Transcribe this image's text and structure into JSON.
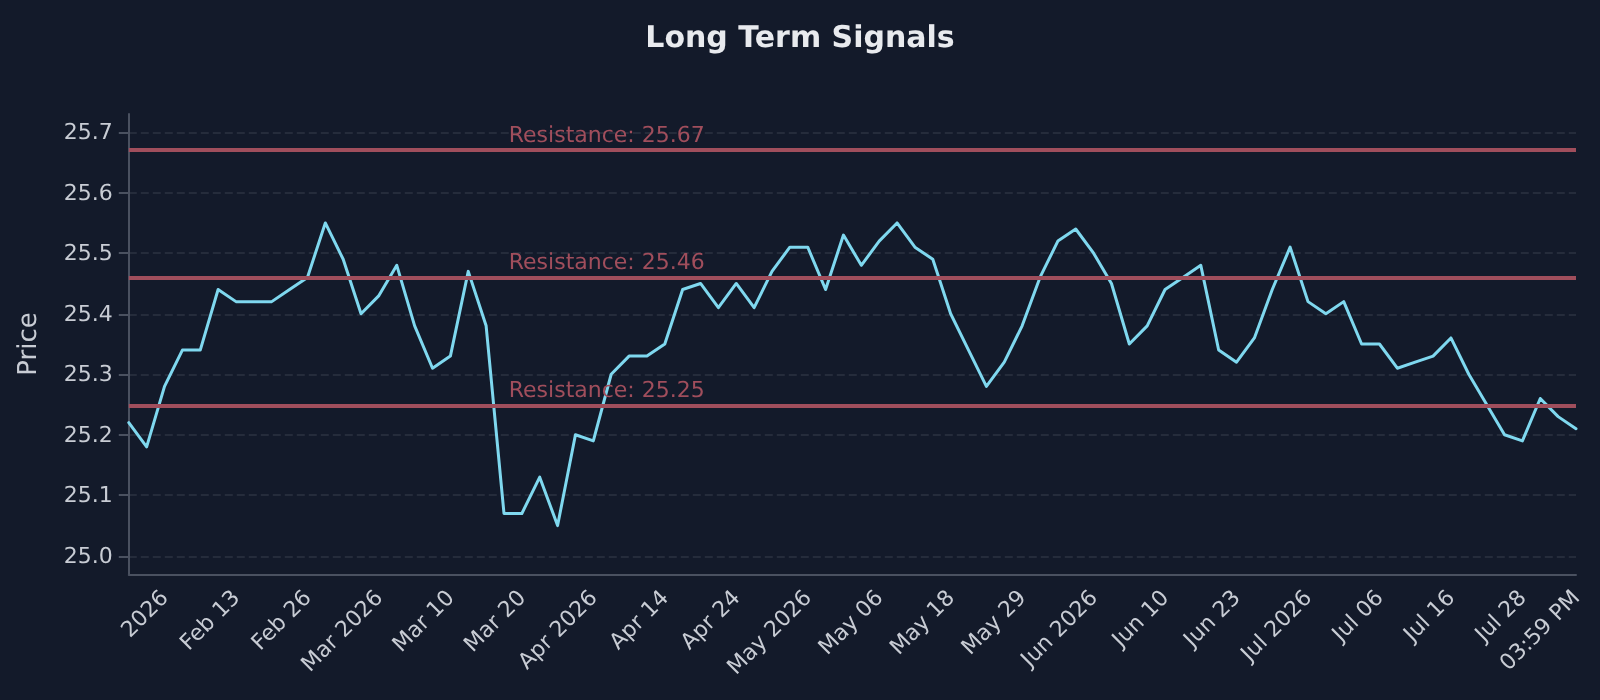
{
  "chart_data": {
    "type": "line",
    "title": "Long Term Signals",
    "ylabel": "Price",
    "categories": [
      null,
      null,
      "2026",
      null,
      null,
      null,
      "Feb 13",
      null,
      null,
      null,
      "Feb 26",
      null,
      null,
      null,
      "Mar 2026",
      null,
      null,
      null,
      "Mar 10",
      null,
      null,
      null,
      "Mar 20",
      null,
      null,
      null,
      "Apr 2026",
      null,
      null,
      null,
      "Apr 14",
      null,
      null,
      null,
      "Apr 24",
      null,
      null,
      null,
      "May 2026",
      null,
      null,
      null,
      "May 06",
      null,
      null,
      null,
      "May 18",
      null,
      null,
      null,
      "May 29",
      null,
      null,
      null,
      "Jun 2026",
      null,
      null,
      null,
      "Jun 10",
      null,
      null,
      null,
      "Jun 23",
      null,
      null,
      null,
      "Jul 2026",
      null,
      null,
      null,
      "Jul 06",
      null,
      null,
      null,
      "Jul 16",
      null,
      null,
      null,
      "Jul 28",
      null,
      null,
      "03:59 PM"
    ],
    "series": [
      {
        "color": "#7fd8ef",
        "values": [
          25.22,
          25.18,
          25.28,
          25.34,
          25.34,
          25.44,
          25.42,
          25.42,
          25.42,
          25.44,
          25.46,
          25.55,
          25.49,
          25.4,
          25.43,
          25.48,
          25.38,
          25.31,
          25.33,
          25.47,
          25.38,
          25.07,
          25.07,
          25.13,
          25.05,
          25.2,
          25.19,
          25.3,
          25.33,
          25.33,
          25.35,
          25.44,
          25.45,
          25.41,
          25.45,
          25.41,
          25.47,
          25.51,
          25.51,
          25.44,
          25.53,
          25.48,
          25.52,
          25.55,
          25.51,
          25.49,
          25.4,
          25.34,
          25.28,
          25.32,
          25.38,
          25.46,
          25.52,
          25.54,
          25.5,
          25.45,
          25.35,
          25.38,
          25.44,
          25.46,
          25.48,
          25.34,
          25.32,
          25.36,
          25.44,
          25.51,
          25.42,
          25.4,
          25.42,
          25.35,
          25.35,
          25.31,
          25.32,
          25.33,
          25.36,
          25.3,
          25.25,
          25.2,
          25.19,
          25.26,
          25.23,
          25.21
        ]
      }
    ],
    "ylim": [
      24.97,
      25.73
    ],
    "yticks": [
      {
        "value": 25.0,
        "label": "25.0"
      },
      {
        "value": 25.1,
        "label": "25.1"
      },
      {
        "value": 25.2,
        "label": "25.2"
      },
      {
        "value": 25.3,
        "label": "25.3"
      },
      {
        "value": 25.4,
        "label": "25.4"
      },
      {
        "value": 25.5,
        "label": "25.5"
      },
      {
        "value": 25.6,
        "label": "25.6"
      },
      {
        "value": 25.7,
        "label": "25.7"
      }
    ],
    "grid": "y",
    "marker": "none",
    "line_style": "solid",
    "ref_lines": [
      {
        "axis": "y",
        "value": 25.67,
        "label": "Resistance: 25.67",
        "color": "#a04e5c"
      },
      {
        "axis": "y",
        "value": 25.46,
        "label": "Resistance: 25.46",
        "color": "#a04e5c"
      },
      {
        "axis": "y",
        "value": 25.25,
        "label": "Resistance: 25.25",
        "color": "#a04e5c"
      }
    ]
  }
}
